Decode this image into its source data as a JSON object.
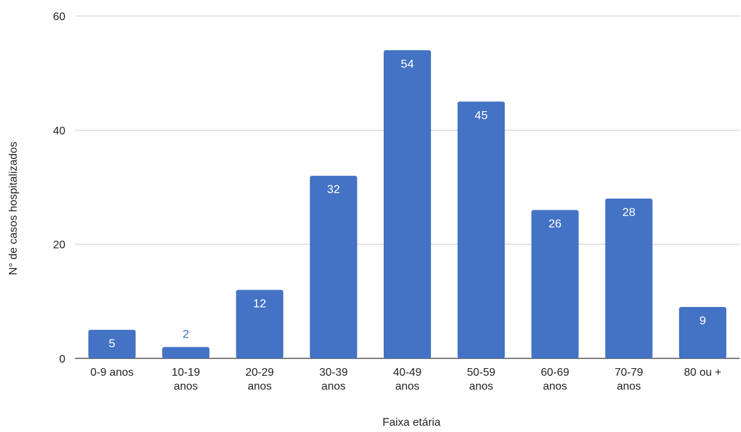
{
  "chart_data": {
    "type": "bar",
    "categories": [
      [
        "0-9 anos"
      ],
      [
        "10-19",
        "anos"
      ],
      [
        "20-29",
        "anos"
      ],
      [
        "30-39",
        "anos"
      ],
      [
        "40-49",
        "anos"
      ],
      [
        "50-59",
        "anos"
      ],
      [
        "60-69",
        "anos"
      ],
      [
        "70-79",
        "anos"
      ],
      [
        "80 ou +"
      ]
    ],
    "values": [
      5,
      2,
      12,
      32,
      54,
      45,
      26,
      28,
      9
    ],
    "xlabel": "Faixa etária",
    "ylabel": "N° de casos hospitalizados",
    "ylim": [
      0,
      60
    ],
    "yticks": [
      0,
      20,
      40,
      60
    ],
    "grid": true,
    "colors": {
      "bar": "#4472c4",
      "label_inside": "#ffffff",
      "label_outside": "#4472c4"
    }
  }
}
